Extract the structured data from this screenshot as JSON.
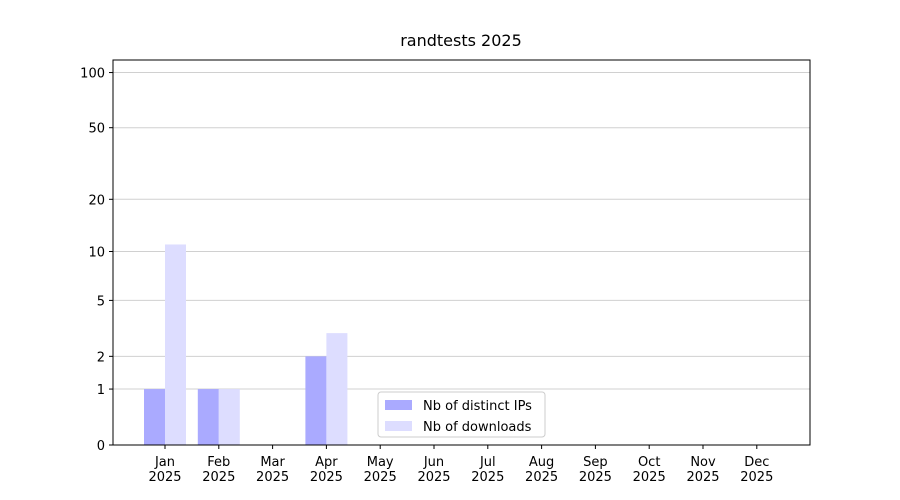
{
  "chart_data": {
    "type": "bar",
    "title": "randtests 2025",
    "categories": [
      "Jan\n2025",
      "Feb\n2025",
      "Mar\n2025",
      "Apr\n2025",
      "May\n2025",
      "Jun\n2025",
      "Jul\n2025",
      "Aug\n2025",
      "Sep\n2025",
      "Oct\n2025",
      "Nov\n2025",
      "Dec\n2025"
    ],
    "series": [
      {
        "name": "Nb of distinct IPs",
        "color": "#aaaaff",
        "values": [
          1,
          1,
          0,
          2,
          0,
          0,
          0,
          0,
          0,
          0,
          0,
          0
        ]
      },
      {
        "name": "Nb of downloads",
        "color": "#ddddff",
        "values": [
          11,
          1,
          0,
          3,
          0,
          0,
          0,
          0,
          0,
          0,
          0,
          0
        ]
      }
    ],
    "y_scale": "log1p",
    "ylim": [
      0,
      117
    ],
    "yticks": [
      0,
      1,
      2,
      5,
      10,
      20,
      50,
      100
    ],
    "grid": true,
    "legend": "lower center"
  }
}
